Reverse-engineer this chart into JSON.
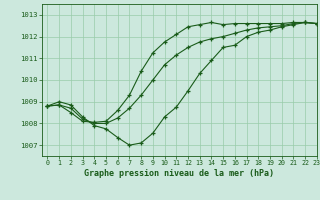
{
  "title": "Graphe pression niveau de la mer (hPa)",
  "background_color": "#cce8dd",
  "line_color": "#1a5c1a",
  "grid_color": "#99ccaa",
  "xlim": [
    -0.5,
    23
  ],
  "ylim": [
    1006.5,
    1013.5
  ],
  "yticks": [
    1007,
    1008,
    1009,
    1010,
    1011,
    1012,
    1013
  ],
  "xticks": [
    0,
    1,
    2,
    3,
    4,
    5,
    6,
    7,
    8,
    9,
    10,
    11,
    12,
    13,
    14,
    15,
    16,
    17,
    18,
    19,
    20,
    21,
    22,
    23
  ],
  "series1_x": [
    0,
    1,
    2,
    3,
    4,
    5,
    6,
    7,
    8,
    9,
    10,
    11,
    12,
    13,
    14,
    15,
    16,
    17,
    18,
    19,
    20,
    21,
    22,
    23
  ],
  "series1_y": [
    1008.8,
    1009.0,
    1008.85,
    1008.3,
    1007.9,
    1007.75,
    1007.35,
    1007.0,
    1007.1,
    1007.55,
    1008.3,
    1008.75,
    1009.5,
    1010.3,
    1010.9,
    1011.5,
    1011.6,
    1012.0,
    1012.2,
    1012.3,
    1012.45,
    1012.55,
    1012.65,
    1012.6
  ],
  "series2_x": [
    0,
    1,
    2,
    3,
    4,
    5,
    6,
    7,
    8,
    9,
    10,
    11,
    12,
    13,
    14,
    15,
    16,
    17,
    18,
    19,
    20,
    21,
    22,
    23
  ],
  "series2_y": [
    1008.8,
    1008.85,
    1008.5,
    1008.1,
    1008.05,
    1008.1,
    1008.6,
    1009.3,
    1010.4,
    1011.25,
    1011.75,
    1012.1,
    1012.45,
    1012.55,
    1012.65,
    1012.55,
    1012.6,
    1012.6,
    1012.6,
    1012.6,
    1012.6,
    1012.65,
    1012.65,
    1012.6
  ],
  "series3_x": [
    0,
    1,
    2,
    3,
    4,
    5,
    6,
    7,
    8,
    9,
    10,
    11,
    12,
    13,
    14,
    15,
    16,
    17,
    18,
    19,
    20,
    21,
    22,
    23
  ],
  "series3_y": [
    1008.8,
    1008.85,
    1008.7,
    1008.2,
    1008.0,
    1008.0,
    1008.25,
    1008.7,
    1009.3,
    1010.0,
    1010.7,
    1011.15,
    1011.5,
    1011.75,
    1011.9,
    1012.0,
    1012.15,
    1012.3,
    1012.4,
    1012.45,
    1012.5,
    1012.6,
    1012.65,
    1012.6
  ]
}
